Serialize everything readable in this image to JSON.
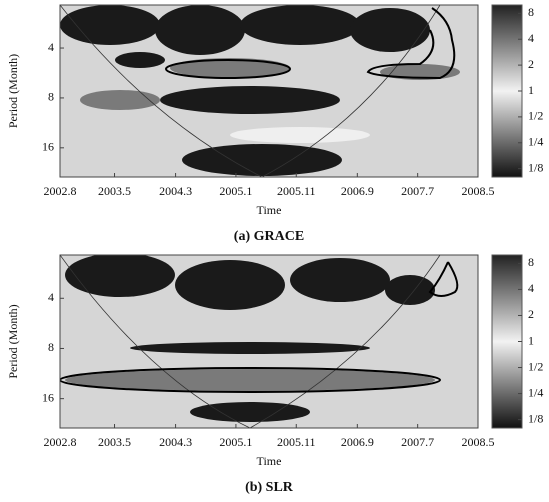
{
  "chart_data": [
    {
      "type": "heatmap",
      "title": "(a) GRACE",
      "xlabel": "Time",
      "ylabel": "Period (Month)",
      "xlim": [
        2002.58,
        2008.33
      ],
      "xticks": [
        {
          "value": 2002.58,
          "label": "2002.8"
        },
        {
          "value": 2003.33,
          "label": "2003.5"
        },
        {
          "value": 2004.17,
          "label": "2004.3"
        },
        {
          "value": 2005.0,
          "label": "2005.1"
        },
        {
          "value": 2005.83,
          "label": "2005.11"
        },
        {
          "value": 2006.67,
          "label": "2006.9"
        },
        {
          "value": 2007.5,
          "label": "2007.7"
        },
        {
          "value": 2008.33,
          "label": "2008.5"
        }
      ],
      "ylim": [
        2.2,
        24
      ],
      "yticks": [
        4,
        8,
        16
      ],
      "y_log": true,
      "clim": [
        0.1,
        10
      ],
      "c_log": true,
      "cticks": [
        8,
        4,
        2,
        1,
        {
          "value": 0.5,
          "label": "1/2"
        },
        {
          "value": 0.25,
          "label": "1/4"
        },
        {
          "value": 0.125,
          "label": "1/8"
        }
      ]
    },
    {
      "type": "heatmap",
      "title": "(b) SLR",
      "xlabel": "Time",
      "ylabel": "Period (Month)",
      "xlim": [
        2002.58,
        2008.33
      ],
      "xticks": [
        {
          "value": 2002.58,
          "label": "2002.8"
        },
        {
          "value": 2003.33,
          "label": "2003.5"
        },
        {
          "value": 2004.17,
          "label": "2004.3"
        },
        {
          "value": 2005.0,
          "label": "2005.1"
        },
        {
          "value": 2005.83,
          "label": "2005.11"
        },
        {
          "value": 2006.67,
          "label": "2006.9"
        },
        {
          "value": 2007.5,
          "label": "2007.7"
        },
        {
          "value": 2008.33,
          "label": "2008.5"
        }
      ],
      "ylim": [
        2.2,
        24
      ],
      "yticks": [
        4,
        8,
        16
      ],
      "y_log": true,
      "clim": [
        0.1,
        10
      ],
      "c_log": true,
      "cticks": [
        8,
        4,
        2,
        1,
        {
          "value": 0.5,
          "label": "1/2"
        },
        {
          "value": 0.25,
          "label": "1/4"
        },
        {
          "value": 0.125,
          "label": "1/8"
        }
      ]
    }
  ]
}
